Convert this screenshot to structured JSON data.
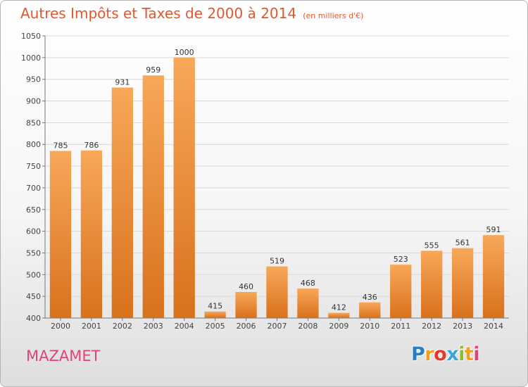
{
  "header": {
    "title": "Autres Impôts et Taxes de 2000 à 2014",
    "subtitle": "(en milliers d'€)"
  },
  "commune": "MAZAMET",
  "logo": {
    "text": "Proxiti",
    "letters": [
      "P",
      "r",
      "o",
      "x",
      "i",
      "t",
      "i"
    ],
    "letter_colors": [
      "#2a7fc4",
      "#f0a020",
      "#e23a2a",
      "#3aa7d8",
      "#8dbf27",
      "#f0a020",
      "#e0447a"
    ]
  },
  "colors": {
    "bar_light": "#f7a859",
    "bar_dark": "#d9711c",
    "grid": "#d8d8d8",
    "axis": "#777777",
    "title": "#e2572d",
    "commune": "#e0447a"
  },
  "chart_data": {
    "type": "bar",
    "title": "Autres Impôts et Taxes de 2000 à 2014",
    "subtitle": "(en milliers d'€)",
    "categories": [
      "2000",
      "2001",
      "2002",
      "2003",
      "2004",
      "2005",
      "2006",
      "2007",
      "2008",
      "2009",
      "2010",
      "2011",
      "2012",
      "2013",
      "2014"
    ],
    "values": [
      785,
      786,
      931,
      959,
      1000,
      415,
      460,
      519,
      468,
      412,
      436,
      523,
      555,
      561,
      591
    ],
    "data_labels": [
      "785",
      "786",
      "931",
      "959",
      "1000",
      "415",
      "460",
      "519",
      "468",
      "412",
      "436",
      "523",
      "555",
      "561",
      "591"
    ],
    "ylim": [
      400,
      1050
    ],
    "yticks": [
      400,
      450,
      500,
      550,
      600,
      650,
      700,
      750,
      800,
      850,
      900,
      950,
      1000,
      1050
    ],
    "grid": true,
    "xlabel": "",
    "ylabel": ""
  }
}
